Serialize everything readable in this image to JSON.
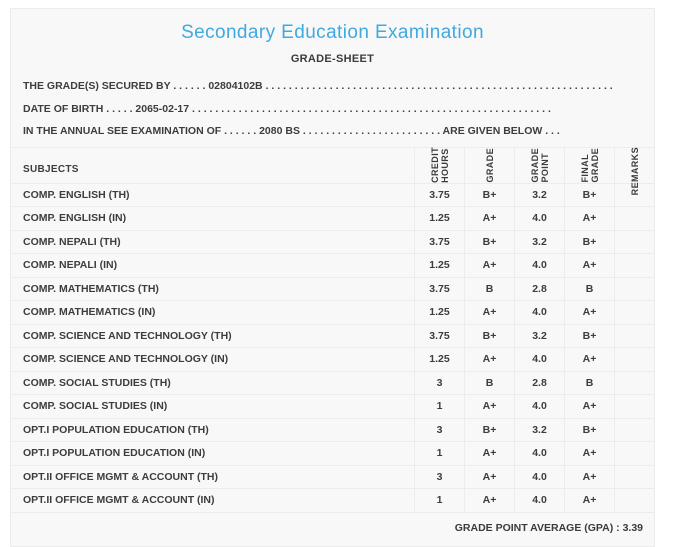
{
  "header": {
    "title": "Secondary Education Examination",
    "subtitle": "GRADE-SHEET"
  },
  "student_info": {
    "lines": [
      {
        "label": "THE GRADE(S) SECURED BY",
        "dots_before": " . . . . . . ",
        "value": "02804102B",
        "dots_after": " . . . . . . . . . . . . . . . . . . . . . . . . . . . . . . . . . . . . . . . . . . . . . . . . . . . . . . . . . . . .",
        "suffix": "",
        "suffix_dots": ""
      },
      {
        "label": "DATE OF BIRTH",
        "dots_before": " . . . . . ",
        "value": "2065-02-17",
        "dots_after": " . . . . . . . . . . . . . . . . . . . . . . . . . . . . . . . . . . . . . . . . . . . . . . . . . . . . . . . . . . . . . .",
        "suffix": "",
        "suffix_dots": ""
      },
      {
        "label": "IN THE ANNUAL SEE EXAMINATION OF",
        "dots_before": " . . . . . . ",
        "value": "2080 BS",
        "dots_after": " . . . . . . . . . . . . . . . . . . . . . . . .",
        "suffix": " ARE GIVEN BELOW",
        "suffix_dots": " . . ."
      }
    ]
  },
  "table": {
    "columns": [
      {
        "label": "SUBJECTS"
      },
      {
        "label": "CREDIT\nHOURS"
      },
      {
        "label": "GRADE"
      },
      {
        "label": "GRADE\nPOINT"
      },
      {
        "label": "FINAL\nGRADE"
      },
      {
        "label": "REMARKS"
      }
    ],
    "rows": [
      {
        "subject": "COMP. ENGLISH (TH)",
        "credit_hours": "3.75",
        "grade": "B+",
        "grade_point": "3.2",
        "final_grade": "B+",
        "remarks": ""
      },
      {
        "subject": "COMP. ENGLISH (IN)",
        "credit_hours": "1.25",
        "grade": "A+",
        "grade_point": "4.0",
        "final_grade": "A+",
        "remarks": ""
      },
      {
        "subject": "COMP. NEPALI (TH)",
        "credit_hours": "3.75",
        "grade": "B+",
        "grade_point": "3.2",
        "final_grade": "B+",
        "remarks": ""
      },
      {
        "subject": "COMP. NEPALI (IN)",
        "credit_hours": "1.25",
        "grade": "A+",
        "grade_point": "4.0",
        "final_grade": "A+",
        "remarks": ""
      },
      {
        "subject": "COMP. MATHEMATICS (TH)",
        "credit_hours": "3.75",
        "grade": "B",
        "grade_point": "2.8",
        "final_grade": "B",
        "remarks": ""
      },
      {
        "subject": "COMP. MATHEMATICS (IN)",
        "credit_hours": "1.25",
        "grade": "A+",
        "grade_point": "4.0",
        "final_grade": "A+",
        "remarks": ""
      },
      {
        "subject": "COMP. SCIENCE AND TECHNOLOGY (TH)",
        "credit_hours": "3.75",
        "grade": "B+",
        "grade_point": "3.2",
        "final_grade": "B+",
        "remarks": ""
      },
      {
        "subject": "COMP. SCIENCE AND TECHNOLOGY (IN)",
        "credit_hours": "1.25",
        "grade": "A+",
        "grade_point": "4.0",
        "final_grade": "A+",
        "remarks": ""
      },
      {
        "subject": "COMP. SOCIAL STUDIES (TH)",
        "credit_hours": "3",
        "grade": "B",
        "grade_point": "2.8",
        "final_grade": "B",
        "remarks": ""
      },
      {
        "subject": "COMP. SOCIAL STUDIES (IN)",
        "credit_hours": "1",
        "grade": "A+",
        "grade_point": "4.0",
        "final_grade": "A+",
        "remarks": ""
      },
      {
        "subject": "OPT.I POPULATION EDUCATION (TH)",
        "credit_hours": "3",
        "grade": "B+",
        "grade_point": "3.2",
        "final_grade": "B+",
        "remarks": ""
      },
      {
        "subject": "OPT.I POPULATION EDUCATION (IN)",
        "credit_hours": "1",
        "grade": "A+",
        "grade_point": "4.0",
        "final_grade": "A+",
        "remarks": ""
      },
      {
        "subject": "OPT.II OFFICE MGMT & ACCOUNT (TH)",
        "credit_hours": "3",
        "grade": "A+",
        "grade_point": "4.0",
        "final_grade": "A+",
        "remarks": ""
      },
      {
        "subject": "OPT.II OFFICE MGMT & ACCOUNT (IN)",
        "credit_hours": "1",
        "grade": "A+",
        "grade_point": "4.0",
        "final_grade": "A+",
        "remarks": ""
      }
    ]
  },
  "summary": {
    "gpa_label": "GRADE POINT AVERAGE (GPA)",
    "gpa_separator": " : ",
    "gpa_value": "3.39"
  },
  "colors": {
    "accent_blue": "#3fa9e0",
    "text_color": "#3d3d3d",
    "border_color": "#ececec",
    "card_bg": "#f8f8f8",
    "page_bg": "#ffffff"
  }
}
